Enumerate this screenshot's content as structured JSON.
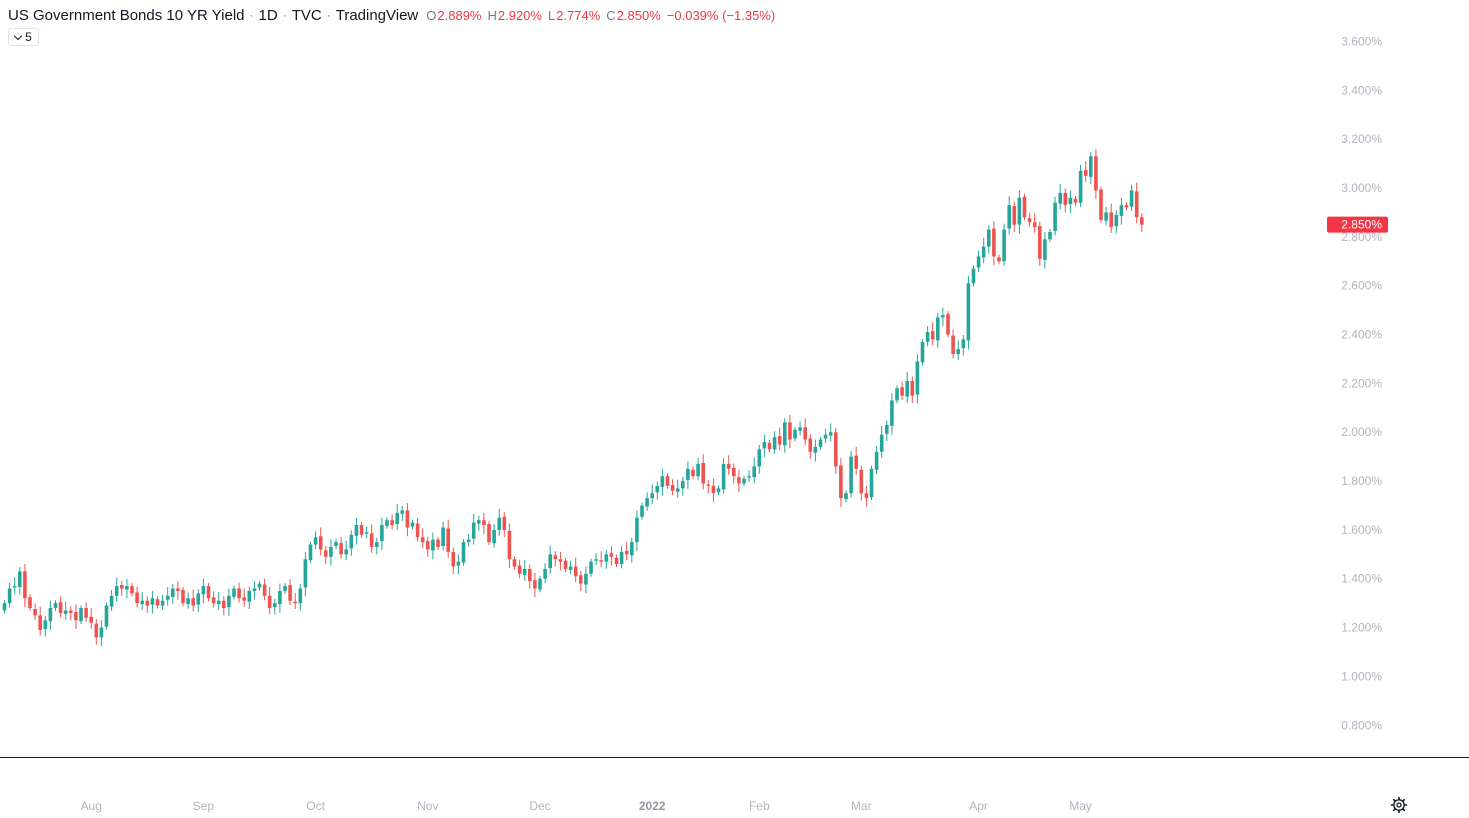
{
  "legend": {
    "symbol": "US Government Bonds 10 YR Yield",
    "interval": "1D",
    "exchange": "TVC",
    "source": "TradingView",
    "sep": "·",
    "open_key": "O",
    "open": "2.889%",
    "high_key": "H",
    "high": "2.920%",
    "low_key": "L",
    "low": "2.774%",
    "close_key": "C",
    "close": "2.850%",
    "change": "−0.039% (−1.35%)",
    "collapsed_count": "5"
  },
  "colors": {
    "up": "#26a69a",
    "down": "#ef5350",
    "axis_text": "#b2b5be",
    "price_label_bg": "#f23645"
  },
  "toolbar": {
    "settings_icon": "gear-icon"
  },
  "chart_data": {
    "type": "candlestick",
    "title": "US Government Bonds 10 YR Yield",
    "y_ticks": [
      "0.800%",
      "1.000%",
      "1.200%",
      "1.400%",
      "1.600%",
      "1.800%",
      "2.000%",
      "2.200%",
      "2.400%",
      "2.600%",
      "2.800%",
      "3.000%",
      "3.200%",
      "3.400%",
      "3.600%"
    ],
    "y_tick_values": [
      0.8,
      1.0,
      1.2,
      1.4,
      1.6,
      1.8,
      2.0,
      2.2,
      2.4,
      2.6,
      2.8,
      3.0,
      3.2,
      3.4,
      3.6
    ],
    "ylim": [
      0.67,
      3.77
    ],
    "x_ticks": [
      {
        "label": "Aug",
        "bold": false,
        "i": 17
      },
      {
        "label": "Sep",
        "bold": false,
        "i": 39
      },
      {
        "label": "Oct",
        "bold": false,
        "i": 61
      },
      {
        "label": "Nov",
        "bold": false,
        "i": 83
      },
      {
        "label": "Dec",
        "bold": false,
        "i": 105
      },
      {
        "label": "2022",
        "bold": true,
        "i": 127
      },
      {
        "label": "Feb",
        "bold": false,
        "i": 148
      },
      {
        "label": "Mar",
        "bold": false,
        "i": 168
      },
      {
        "label": "Apr",
        "bold": false,
        "i": 191
      },
      {
        "label": "May",
        "bold": false,
        "i": 211
      }
    ],
    "last_price": 2.85,
    "last_price_label": "2.850%",
    "closes": [
      1.3,
      1.36,
      1.37,
      1.43,
      1.32,
      1.28,
      1.25,
      1.19,
      1.23,
      1.28,
      1.3,
      1.26,
      1.27,
      1.26,
      1.23,
      1.28,
      1.24,
      1.22,
      1.16,
      1.2,
      1.29,
      1.33,
      1.37,
      1.36,
      1.37,
      1.34,
      1.3,
      1.31,
      1.29,
      1.32,
      1.29,
      1.31,
      1.33,
      1.36,
      1.35,
      1.3,
      1.32,
      1.29,
      1.34,
      1.37,
      1.32,
      1.3,
      1.31,
      1.28,
      1.33,
      1.36,
      1.32,
      1.31,
      1.35,
      1.36,
      1.38,
      1.33,
      1.28,
      1.3,
      1.35,
      1.37,
      1.31,
      1.3,
      1.36,
      1.48,
      1.54,
      1.57,
      1.52,
      1.49,
      1.53,
      1.55,
      1.5,
      1.52,
      1.58,
      1.62,
      1.58,
      1.59,
      1.53,
      1.55,
      1.62,
      1.64,
      1.62,
      1.67,
      1.68,
      1.61,
      1.63,
      1.57,
      1.55,
      1.52,
      1.56,
      1.53,
      1.61,
      1.51,
      1.45,
      1.47,
      1.55,
      1.56,
      1.63,
      1.64,
      1.62,
      1.55,
      1.6,
      1.65,
      1.6,
      1.48,
      1.45,
      1.42,
      1.44,
      1.39,
      1.36,
      1.4,
      1.44,
      1.5,
      1.48,
      1.47,
      1.44,
      1.45,
      1.41,
      1.38,
      1.42,
      1.47,
      1.48,
      1.47,
      1.5,
      1.49,
      1.46,
      1.51,
      1.5,
      1.55,
      1.65,
      1.7,
      1.73,
      1.75,
      1.78,
      1.82,
      1.78,
      1.76,
      1.77,
      1.8,
      1.85,
      1.82,
      1.87,
      1.79,
      1.78,
      1.75,
      1.77,
      1.87,
      1.85,
      1.82,
      1.79,
      1.81,
      1.82,
      1.86,
      1.93,
      1.96,
      1.93,
      1.98,
      1.95,
      2.04,
      1.97,
      2.01,
      2.02,
      1.97,
      1.92,
      1.94,
      1.97,
      1.99,
      2.0,
      1.86,
      1.73,
      1.75,
      1.9,
      1.85,
      1.75,
      1.73,
      1.85,
      1.92,
      1.99,
      2.03,
      2.13,
      2.18,
      2.15,
      2.21,
      2.15,
      2.29,
      2.37,
      2.41,
      2.38,
      2.47,
      2.48,
      2.4,
      2.32,
      2.34,
      2.38,
      2.61,
      2.67,
      2.72,
      2.76,
      2.83,
      2.72,
      2.7,
      2.83,
      2.93,
      2.85,
      2.96,
      2.88,
      2.86,
      2.84,
      2.71,
      2.79,
      2.82,
      2.94,
      2.98,
      2.93,
      2.96,
      2.94,
      3.07,
      3.05,
      3.13,
      2.99,
      2.87,
      2.9,
      2.84,
      2.89,
      2.93,
      2.92,
      2.99,
      2.88,
      2.85
    ]
  }
}
